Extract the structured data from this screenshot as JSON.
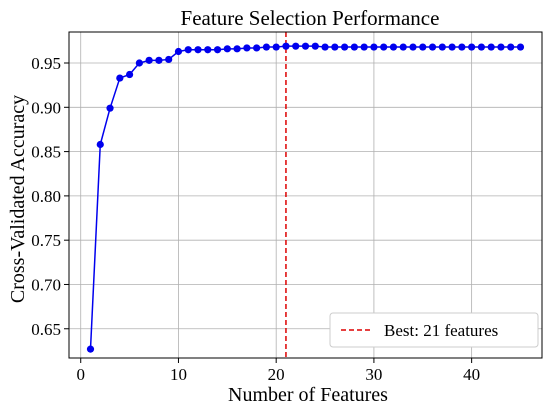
{
  "chart_data": {
    "type": "line",
    "title": "Feature Selection Performance",
    "xlabel": "Number of Features",
    "ylabel": "Cross-Validated Accuracy",
    "xlim": [
      -1.2,
      47.2
    ],
    "ylim": [
      0.617,
      0.985
    ],
    "xticks": [
      0,
      10,
      20,
      30,
      40
    ],
    "xtick_labels": [
      "0",
      "10",
      "20",
      "30",
      "40"
    ],
    "yticks": [
      0.65,
      0.7,
      0.75,
      0.8,
      0.85,
      0.9,
      0.95
    ],
    "ytick_labels": [
      "0.65",
      "0.70",
      "0.75",
      "0.80",
      "0.85",
      "0.90",
      "0.95"
    ],
    "grid": true,
    "legend_position": "bottom-right",
    "series": [
      {
        "color": "#0000ee",
        "marker": "circle",
        "x": [
          1,
          2,
          3,
          4,
          5,
          6,
          7,
          8,
          9,
          10,
          11,
          12,
          13,
          14,
          15,
          16,
          17,
          18,
          19,
          20,
          21,
          22,
          23,
          24,
          25,
          26,
          27,
          28,
          29,
          30,
          31,
          32,
          33,
          34,
          35,
          36,
          37,
          38,
          39,
          40,
          41,
          42,
          43,
          44,
          45
        ],
        "values": [
          0.627,
          0.858,
          0.899,
          0.933,
          0.937,
          0.95,
          0.953,
          0.953,
          0.954,
          0.963,
          0.965,
          0.965,
          0.965,
          0.965,
          0.966,
          0.966,
          0.967,
          0.967,
          0.968,
          0.968,
          0.969,
          0.969,
          0.969,
          0.969,
          0.968,
          0.968,
          0.968,
          0.968,
          0.968,
          0.968,
          0.968,
          0.968,
          0.968,
          0.968,
          0.968,
          0.968,
          0.968,
          0.968,
          0.968,
          0.968,
          0.968,
          0.968,
          0.968,
          0.968,
          0.968
        ]
      }
    ],
    "reference_line": {
      "orientation": "vertical",
      "x": 21,
      "color": "#dd0000",
      "style": "dashed",
      "label": "Best: 21 features"
    }
  }
}
